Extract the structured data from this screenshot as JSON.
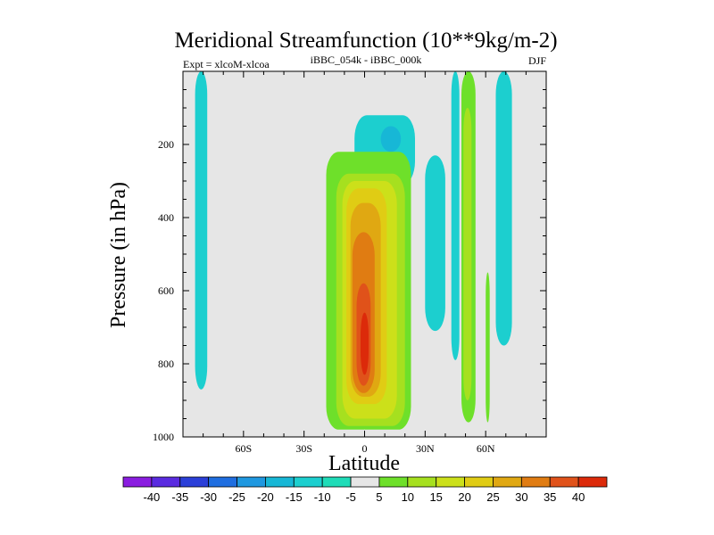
{
  "chart_data": {
    "type": "heatmap",
    "title": "Meridional Streamfunction (10**9kg/m-2)",
    "subtitle_left": "Expt = xlcoM-xlcoa",
    "subtitle_center": "iBBC_054k - iBBC_000k",
    "subtitle_right": "DJF",
    "xlabel": "Latitude",
    "ylabel": "Pressure (in hPa)",
    "xlim": [
      -90,
      90
    ],
    "ylim": [
      1000,
      0
    ],
    "x_ticks": [
      {
        "value": -60,
        "label": "60S"
      },
      {
        "value": -30,
        "label": "30S"
      },
      {
        "value": 0,
        "label": "0"
      },
      {
        "value": 30,
        "label": "30N"
      },
      {
        "value": 60,
        "label": "60N"
      }
    ],
    "y_ticks": [
      {
        "value": 200,
        "label": "200"
      },
      {
        "value": 400,
        "label": "400"
      },
      {
        "value": 600,
        "label": "600"
      },
      {
        "value": 800,
        "label": "800"
      },
      {
        "value": 1000,
        "label": "1000"
      }
    ],
    "colorbar": {
      "labels": [
        "-40",
        "-35",
        "-30",
        "-25",
        "-20",
        "-15",
        "-10",
        "-5",
        "5",
        "10",
        "15",
        "20",
        "25",
        "30",
        "35",
        "40"
      ],
      "colors": [
        "#8a1de0",
        "#5a2be0",
        "#2b3fd8",
        "#1f6ee0",
        "#1f98e0",
        "#17b7d6",
        "#1ccfcf",
        "#1fdcb8",
        "#e6e6e6",
        "#6ee02a",
        "#a6e01f",
        "#cce01a",
        "#e0cc14",
        "#e0a812",
        "#e07c12",
        "#e0521a",
        "#dc2a0a"
      ]
    },
    "regions": [
      {
        "sign": "negative",
        "level": -5,
        "lat": [
          -84,
          -78
        ],
        "p": [
          0,
          870
        ]
      },
      {
        "sign": "negative",
        "level": -5,
        "lat": [
          -5,
          25
        ],
        "p": [
          120,
          310
        ]
      },
      {
        "sign": "negative",
        "level": -10,
        "lat": [
          8,
          18
        ],
        "p": [
          150,
          220
        ]
      },
      {
        "sign": "negative",
        "level": -5,
        "lat": [
          30,
          40
        ],
        "p": [
          230,
          710
        ]
      },
      {
        "sign": "negative",
        "level": -5,
        "lat": [
          43,
          47
        ],
        "p": [
          0,
          790
        ]
      },
      {
        "sign": "negative",
        "level": -5,
        "lat": [
          65,
          73
        ],
        "p": [
          0,
          750
        ]
      },
      {
        "sign": "positive",
        "level": 5,
        "lat": [
          -19,
          23
        ],
        "p": [
          220,
          980
        ]
      },
      {
        "sign": "positive",
        "level": 10,
        "lat": [
          -14,
          20
        ],
        "p": [
          280,
          970
        ]
      },
      {
        "sign": "positive",
        "level": 15,
        "lat": [
          -11,
          16
        ],
        "p": [
          300,
          950
        ]
      },
      {
        "sign": "positive",
        "level": 20,
        "lat": [
          -9,
          11
        ],
        "p": [
          320,
          910
        ]
      },
      {
        "sign": "positive",
        "level": 25,
        "lat": [
          -7,
          8
        ],
        "p": [
          360,
          890
        ]
      },
      {
        "sign": "positive",
        "level": 30,
        "lat": [
          -6,
          5
        ],
        "p": [
          440,
          880
        ]
      },
      {
        "sign": "positive",
        "level": 35,
        "lat": [
          -4,
          3
        ],
        "p": [
          580,
          860
        ]
      },
      {
        "sign": "positive",
        "level": 40,
        "lat": [
          -2,
          2
        ],
        "p": [
          660,
          830
        ]
      },
      {
        "sign": "positive",
        "level": 5,
        "lat": [
          48,
          55
        ],
        "p": [
          0,
          960
        ]
      },
      {
        "sign": "positive",
        "level": 10,
        "lat": [
          49,
          53
        ],
        "p": [
          100,
          900
        ]
      },
      {
        "sign": "positive",
        "level": 5,
        "lat": [
          60,
          62
        ],
        "p": [
          550,
          960
        ]
      }
    ]
  }
}
